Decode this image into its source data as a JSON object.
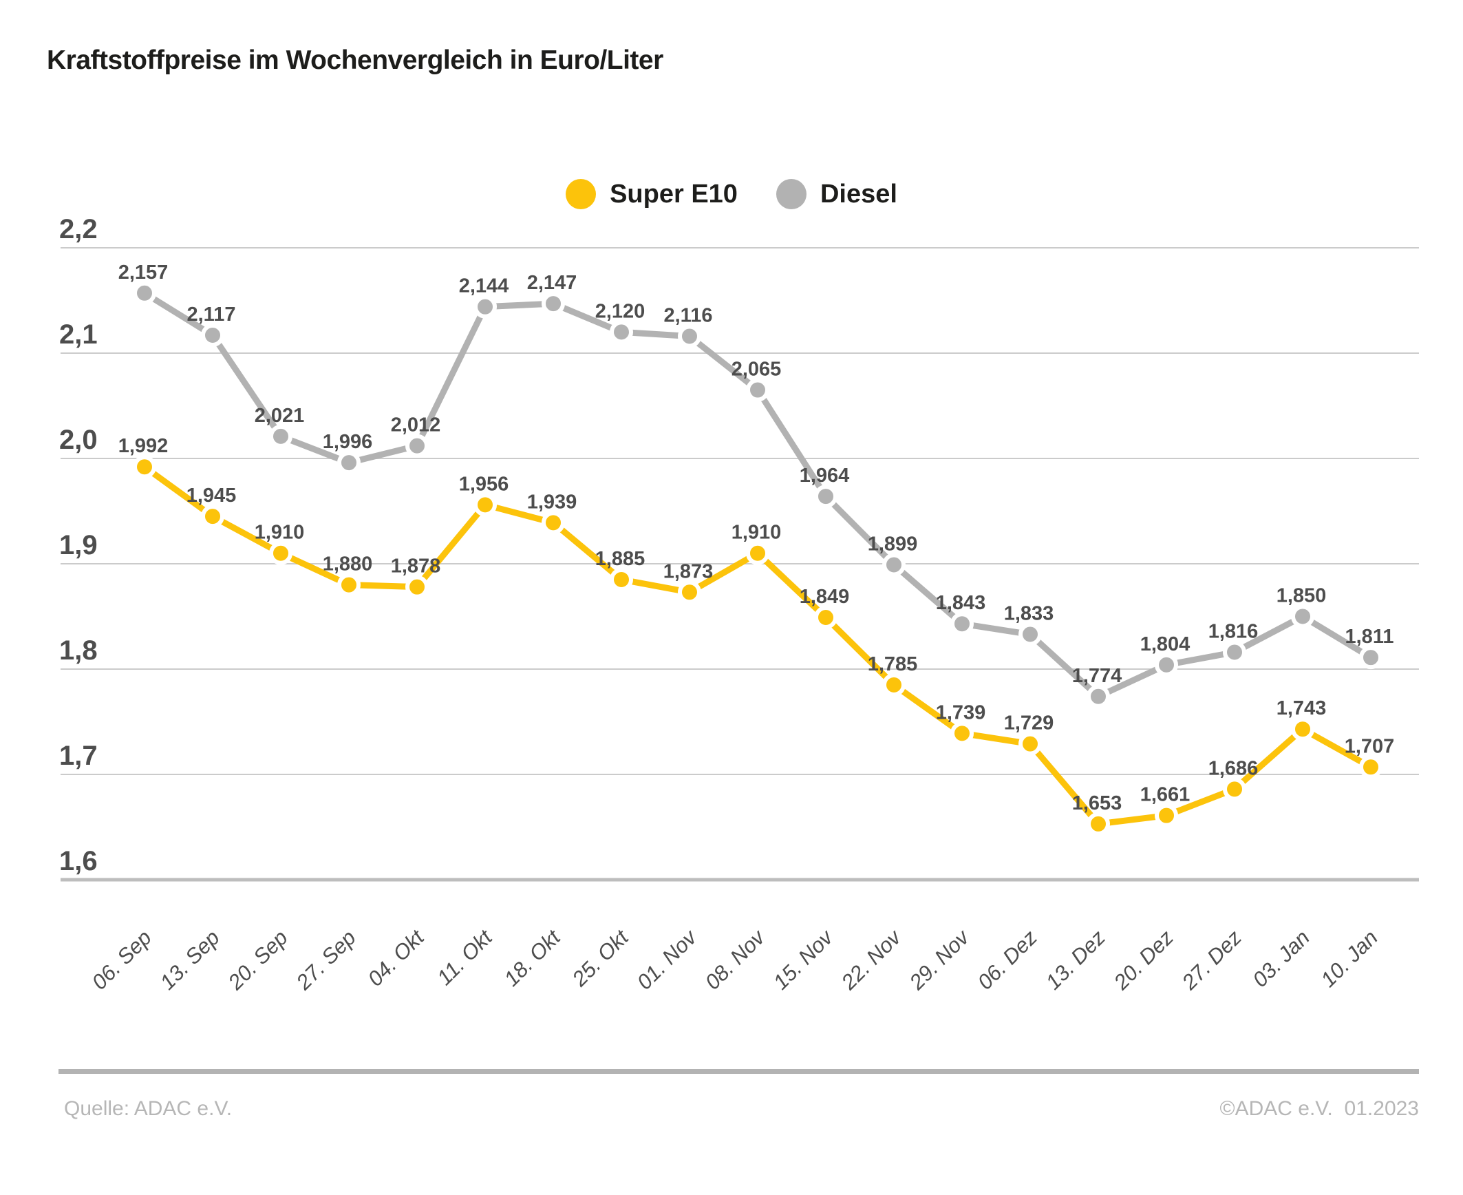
{
  "title": "Kraftstoffpreise im Wochenvergleich in Euro/Liter",
  "legend": {
    "items": [
      {
        "label": "Super E10",
        "color": "#FCC30B"
      },
      {
        "label": "Diesel",
        "color": "#B2B2B2"
      }
    ]
  },
  "chart_data": {
    "type": "line",
    "title": "Kraftstoffpreise im Wochenvergleich in Euro/Liter",
    "unit": "Euro/Liter",
    "categories": [
      "06. Sep",
      "13. Sep",
      "20. Sep",
      "27. Sep",
      "04. Okt",
      "11. Okt",
      "18. Okt",
      "25. Okt",
      "01. Nov",
      "08. Nov",
      "15. Nov",
      "22. Nov",
      "29. Nov",
      "06. Dez",
      "13. Dez",
      "20. Dez",
      "27. Dez",
      "03. Jan",
      "10. Jan"
    ],
    "series": [
      {
        "name": "Super E10",
        "color": "#FCC30B",
        "values": [
          1.992,
          1.945,
          1.91,
          1.88,
          1.878,
          1.956,
          1.939,
          1.885,
          1.873,
          1.91,
          1.849,
          1.785,
          1.739,
          1.729,
          1.653,
          1.661,
          1.686,
          1.743,
          1.707
        ],
        "labels": [
          "1,992",
          "1,945",
          "1,910",
          "1,880",
          "1,878",
          "1,956",
          "1,939",
          "1,885",
          "1,873",
          "1,910",
          "1,849",
          "1,785",
          "1,739",
          "1,729",
          "1,653",
          "1,661",
          "1,686",
          "1,743",
          "1,707"
        ]
      },
      {
        "name": "Diesel",
        "color": "#B2B2B2",
        "values": [
          2.157,
          2.117,
          2.021,
          1.996,
          2.012,
          2.144,
          2.147,
          2.12,
          2.116,
          2.065,
          1.964,
          1.899,
          1.843,
          1.833,
          1.774,
          1.804,
          1.816,
          1.85,
          1.811
        ],
        "labels": [
          "2,157",
          "2,117",
          "2,021",
          "1,996",
          "2,012",
          "2,144",
          "2,147",
          "2,120",
          "2,116",
          "2,065",
          "1,964",
          "1,899",
          "1,843",
          "1,833",
          "1,774",
          "1,804",
          "1,816",
          "1,850",
          "1,811"
        ]
      }
    ],
    "yticks": {
      "values": [
        2.2,
        2.1,
        2.0,
        1.9,
        1.8,
        1.7,
        1.6
      ],
      "labels": [
        "2,2",
        "2,1",
        "2,0",
        "1,9",
        "1,8",
        "1,7",
        "1,6"
      ]
    },
    "ylim": [
      1.6,
      2.2
    ],
    "grid": "horizontal",
    "legend_position": "top-center"
  },
  "footer": {
    "source": "Quelle: ADAC e.V.",
    "copyright": "©ADAC e.V.  01.2023"
  }
}
